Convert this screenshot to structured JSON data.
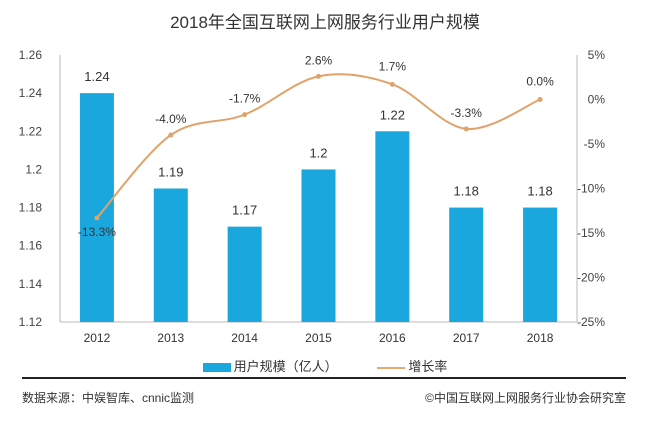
{
  "chart_data": {
    "type": "bar+line",
    "title": "2018年全国互联网上网服务行业用户规模",
    "categories": [
      "2012",
      "2013",
      "2014",
      "2015",
      "2016",
      "2017",
      "2018"
    ],
    "series": [
      {
        "name": "用户规模（亿人）",
        "type": "bar",
        "axis": "left",
        "values": [
          1.24,
          1.19,
          1.17,
          1.2,
          1.22,
          1.18,
          1.18
        ],
        "labels": [
          "1.24",
          "1.19",
          "1.17",
          "1.2",
          "1.22",
          "1.18",
          "1.18"
        ],
        "color": "#1aa7de"
      },
      {
        "name": "增长率",
        "type": "line",
        "axis": "right",
        "values": [
          -13.3,
          -4.0,
          -1.7,
          2.6,
          1.7,
          -3.3,
          0.0
        ],
        "labels": [
          "-13.3%",
          "-4.0%",
          "-1.7%",
          "2.6%",
          "1.7%",
          "-3.3%",
          "0.0%"
        ],
        "color": "#e0a36b"
      }
    ],
    "left_axis": {
      "ylim": [
        1.12,
        1.26
      ],
      "ticks": [
        "1.12",
        "1.14",
        "1.16",
        "1.18",
        "1.2",
        "1.22",
        "1.24",
        "1.26"
      ]
    },
    "right_axis": {
      "ylim": [
        -25,
        5
      ],
      "ticks": [
        "-25%",
        "-20%",
        "-15%",
        "-10%",
        "-5%",
        "0%",
        "5%"
      ]
    },
    "grid": false,
    "legend": "bottom"
  },
  "footer": {
    "source": "数据来源：中娱智库、cnnic监测",
    "copyright": "©中国互联网上网服务行业协会研究室"
  }
}
